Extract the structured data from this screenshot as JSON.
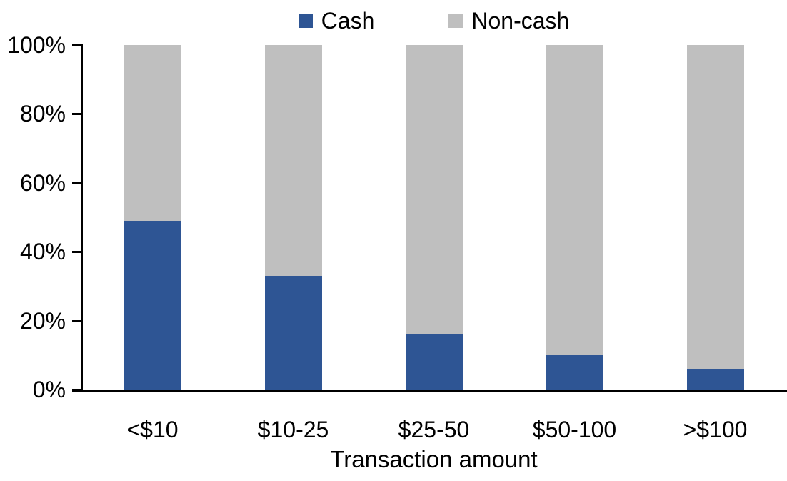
{
  "chart_data": {
    "type": "bar",
    "variant": "100-percent-stacked-column",
    "title": "",
    "xlabel": "Transaction amount",
    "ylabel": "",
    "categories": [
      "<$10",
      "$10-25",
      "$25-50",
      "$50-100",
      ">$100"
    ],
    "series": [
      {
        "name": "Cash",
        "color": "#2E5594",
        "values": [
          49,
          33,
          16,
          10,
          6
        ]
      },
      {
        "name": "Non-cash",
        "color": "#BFBFBF",
        "values": [
          51,
          67,
          84,
          90,
          94
        ]
      }
    ],
    "ylim": [
      0,
      100
    ],
    "y_tick_step": 20,
    "y_tick_labels": [
      "0%",
      "20%",
      "40%",
      "60%",
      "80%",
      "100%"
    ],
    "grid": false,
    "legend_position": "top-center"
  },
  "colors": {
    "axis": "#000000",
    "background": "#FFFFFF",
    "text": "#000000"
  }
}
